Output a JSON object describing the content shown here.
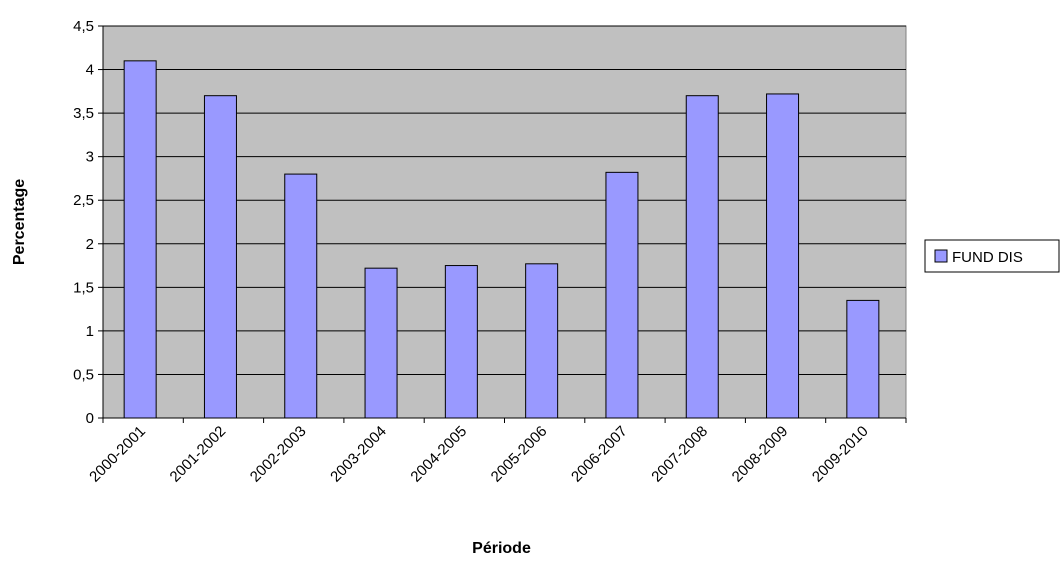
{
  "chart_data": {
    "type": "bar",
    "title": "",
    "xlabel": "Période",
    "ylabel": "Percentage",
    "categories": [
      "2000-2001",
      "2001-2002",
      "2002-2003",
      "2003-2004",
      "2004-2005",
      "2005-2006",
      "2006-2007",
      "2007-2008",
      "2008-2009",
      "2009-2010"
    ],
    "series": [
      {
        "name": "FUND DIS",
        "values": [
          4.1,
          3.7,
          2.8,
          1.72,
          1.75,
          1.77,
          2.82,
          3.7,
          3.72,
          1.35
        ]
      }
    ],
    "ylim": [
      0,
      4.5
    ],
    "yticks": [
      "0",
      "0,5",
      "1",
      "1,5",
      "2",
      "2,5",
      "3",
      "3,5",
      "4",
      "4,5"
    ],
    "grid": true,
    "legend_position": "right",
    "colors": {
      "bar_fill": "#9999ff",
      "bar_stroke": "#000000",
      "plot_background": "#c0c0c0"
    }
  }
}
